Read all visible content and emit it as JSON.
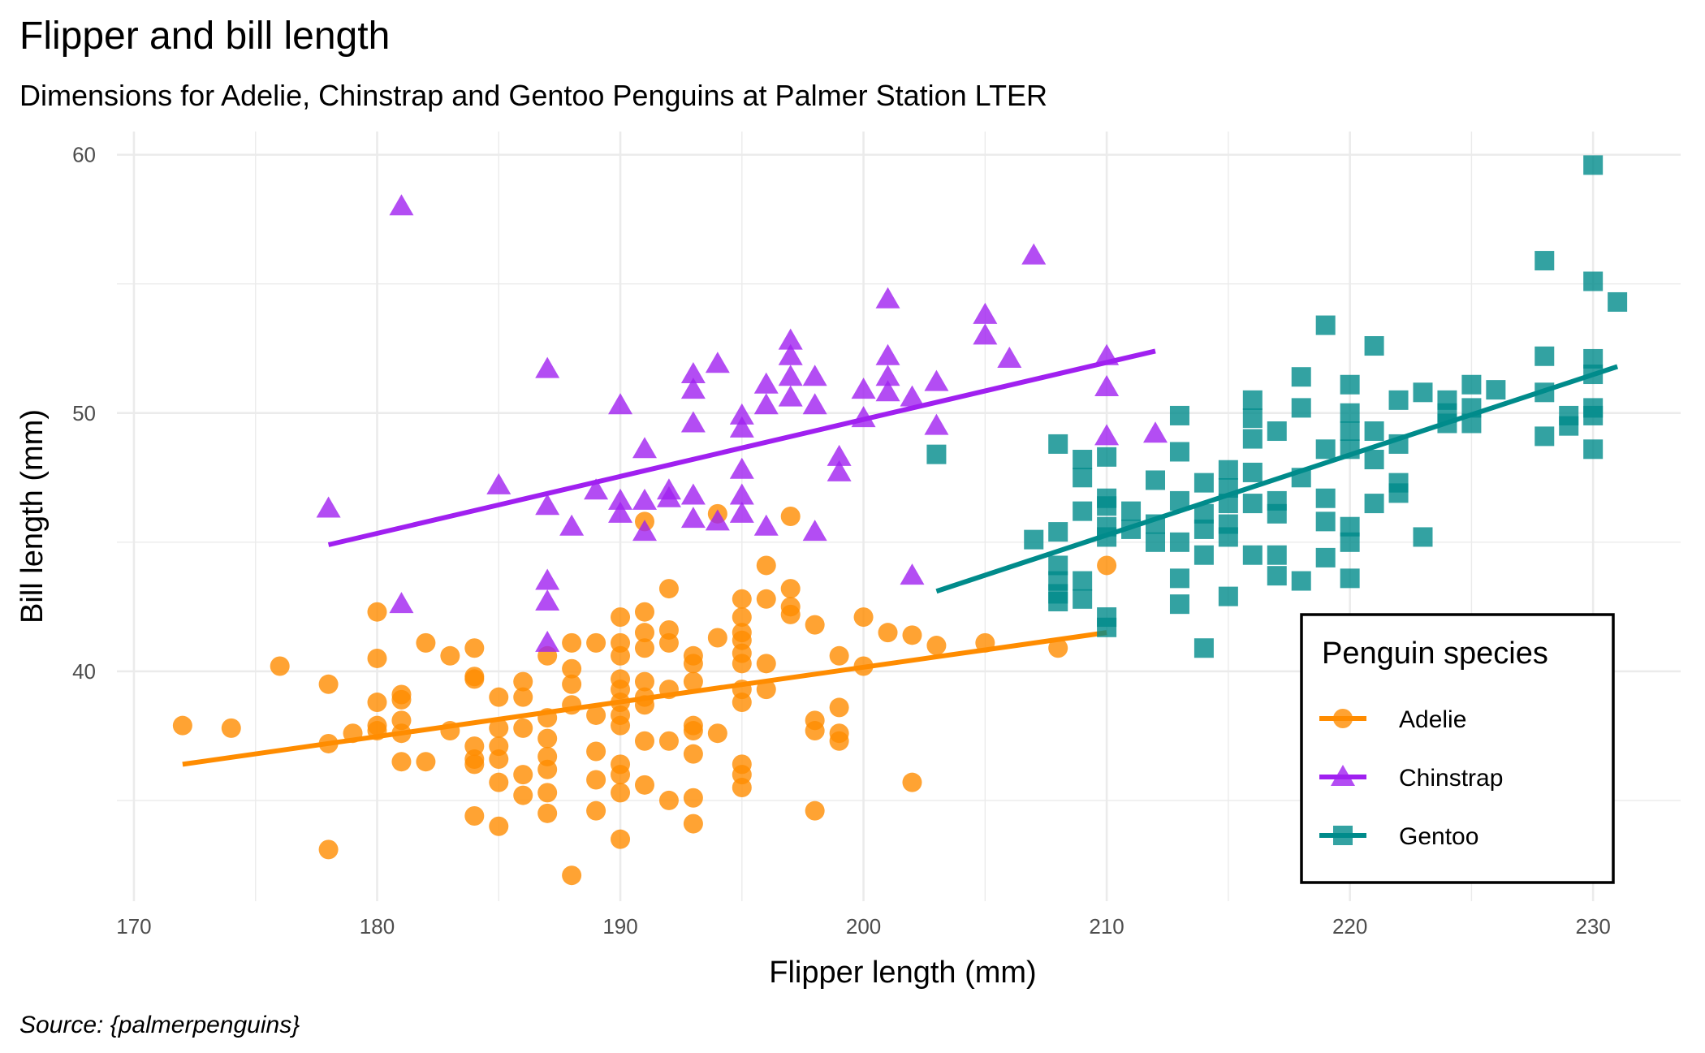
{
  "chart_data": {
    "type": "scatter",
    "title": "Flipper and bill length",
    "subtitle": "Dimensions for Adelie, Chinstrap and Gentoo Penguins at Palmer Station LTER",
    "xlabel": "Flipper length (mm)",
    "ylabel": "Bill length (mm)",
    "caption": "Source: {palmerpenguins}",
    "xlim": [
      169.3,
      233.6
    ],
    "ylim": [
      31.1,
      60.9
    ],
    "xticks": [
      170,
      180,
      190,
      200,
      210,
      220,
      230
    ],
    "yticks": [
      40,
      50,
      60
    ],
    "xtick_labels": [
      "170",
      "180",
      "190",
      "200",
      "210",
      "220",
      "230"
    ],
    "ytick_labels": [
      "40",
      "50",
      "60"
    ],
    "grid": true,
    "legend": {
      "title": "Penguin species",
      "placement": "bottom-right",
      "entries": [
        "Adelie",
        "Chinstrap",
        "Gentoo"
      ]
    },
    "series": [
      {
        "name": "Adelie",
        "color": "#FF8C00",
        "marker": "circle",
        "trend": [
          [
            172,
            36.4
          ],
          [
            210,
            41.5
          ]
        ],
        "points": [
          [
            172,
            37.9
          ],
          [
            174,
            37.8
          ],
          [
            176,
            40.2
          ],
          [
            178,
            39.5
          ],
          [
            178,
            37.2
          ],
          [
            178,
            33.1
          ],
          [
            179,
            37.6
          ],
          [
            180,
            42.3
          ],
          [
            180,
            40.5
          ],
          [
            180,
            38.8
          ],
          [
            180,
            37.9
          ],
          [
            180,
            37.7
          ],
          [
            181,
            39.1
          ],
          [
            181,
            38.9
          ],
          [
            181,
            38.1
          ],
          [
            181,
            37.6
          ],
          [
            181,
            36.5
          ],
          [
            182,
            41.1
          ],
          [
            182,
            36.5
          ],
          [
            183,
            40.6
          ],
          [
            183,
            37.7
          ],
          [
            184,
            40.9
          ],
          [
            184,
            39.8
          ],
          [
            184,
            39.7
          ],
          [
            184,
            37.1
          ],
          [
            184,
            36.6
          ],
          [
            184,
            36.4
          ],
          [
            184,
            34.4
          ],
          [
            185,
            39.0
          ],
          [
            185,
            37.8
          ],
          [
            185,
            37.1
          ],
          [
            185,
            36.6
          ],
          [
            185,
            35.7
          ],
          [
            185,
            34.0
          ],
          [
            186,
            39.6
          ],
          [
            186,
            39.0
          ],
          [
            186,
            37.8
          ],
          [
            186,
            36.0
          ],
          [
            186,
            35.2
          ],
          [
            187,
            40.6
          ],
          [
            187,
            38.2
          ],
          [
            187,
            37.4
          ],
          [
            187,
            36.7
          ],
          [
            187,
            36.2
          ],
          [
            187,
            35.3
          ],
          [
            187,
            34.5
          ],
          [
            188,
            41.1
          ],
          [
            188,
            40.1
          ],
          [
            188,
            39.5
          ],
          [
            188,
            38.7
          ],
          [
            188,
            32.1
          ],
          [
            189,
            41.1
          ],
          [
            189,
            38.3
          ],
          [
            189,
            36.9
          ],
          [
            189,
            35.8
          ],
          [
            189,
            34.6
          ],
          [
            190,
            42.1
          ],
          [
            190,
            41.1
          ],
          [
            190,
            40.6
          ],
          [
            190,
            39.7
          ],
          [
            190,
            39.3
          ],
          [
            190,
            38.8
          ],
          [
            190,
            38.3
          ],
          [
            190,
            37.9
          ],
          [
            190,
            36.4
          ],
          [
            190,
            36.0
          ],
          [
            190,
            35.3
          ],
          [
            190,
            33.5
          ],
          [
            191,
            45.8
          ],
          [
            191,
            42.3
          ],
          [
            191,
            41.5
          ],
          [
            191,
            40.9
          ],
          [
            191,
            39.6
          ],
          [
            191,
            39.0
          ],
          [
            191,
            38.7
          ],
          [
            191,
            37.3
          ],
          [
            191,
            35.6
          ],
          [
            192,
            43.2
          ],
          [
            192,
            41.6
          ],
          [
            192,
            41.1
          ],
          [
            192,
            39.3
          ],
          [
            192,
            37.3
          ],
          [
            192,
            35.0
          ],
          [
            193,
            40.6
          ],
          [
            193,
            40.3
          ],
          [
            193,
            39.6
          ],
          [
            193,
            37.9
          ],
          [
            193,
            37.7
          ],
          [
            193,
            36.8
          ],
          [
            193,
            35.1
          ],
          [
            193,
            34.1
          ],
          [
            194,
            46.1
          ],
          [
            194,
            41.3
          ],
          [
            194,
            37.6
          ],
          [
            195,
            42.8
          ],
          [
            195,
            42.1
          ],
          [
            195,
            41.5
          ],
          [
            195,
            41.2
          ],
          [
            195,
            40.7
          ],
          [
            195,
            40.3
          ],
          [
            195,
            39.3
          ],
          [
            195,
            38.8
          ],
          [
            195,
            36.4
          ],
          [
            195,
            36.0
          ],
          [
            195,
            35.5
          ],
          [
            196,
            44.1
          ],
          [
            196,
            42.8
          ],
          [
            196,
            40.3
          ],
          [
            196,
            39.3
          ],
          [
            197,
            46.0
          ],
          [
            197,
            43.2
          ],
          [
            197,
            42.5
          ],
          [
            197,
            42.2
          ],
          [
            198,
            41.8
          ],
          [
            198,
            38.1
          ],
          [
            198,
            37.7
          ],
          [
            198,
            34.6
          ],
          [
            199,
            40.6
          ],
          [
            199,
            38.6
          ],
          [
            199,
            37.6
          ],
          [
            199,
            37.3
          ],
          [
            200,
            42.1
          ],
          [
            200,
            40.2
          ],
          [
            201,
            41.5
          ],
          [
            202,
            41.4
          ],
          [
            202,
            35.7
          ],
          [
            203,
            41.0
          ],
          [
            205,
            41.1
          ],
          [
            208,
            40.9
          ],
          [
            210,
            44.1
          ]
        ]
      },
      {
        "name": "Chinstrap",
        "color": "#A020F0",
        "marker": "triangle",
        "trend": [
          [
            178,
            44.9
          ],
          [
            212,
            52.4
          ]
        ],
        "points": [
          [
            178,
            46.3
          ],
          [
            181,
            58.0
          ],
          [
            181,
            42.6
          ],
          [
            185,
            47.2
          ],
          [
            187,
            51.7
          ],
          [
            187,
            46.4
          ],
          [
            187,
            43.5
          ],
          [
            187,
            42.7
          ],
          [
            187,
            41.1
          ],
          [
            188,
            45.6
          ],
          [
            189,
            47.0
          ],
          [
            190,
            50.3
          ],
          [
            190,
            46.6
          ],
          [
            190,
            46.1
          ],
          [
            191,
            48.6
          ],
          [
            191,
            46.6
          ],
          [
            191,
            45.4
          ],
          [
            192,
            47.0
          ],
          [
            192,
            46.7
          ],
          [
            193,
            51.5
          ],
          [
            193,
            50.9
          ],
          [
            193,
            49.6
          ],
          [
            193,
            46.8
          ],
          [
            193,
            45.9
          ],
          [
            194,
            51.9
          ],
          [
            194,
            45.8
          ],
          [
            195,
            49.9
          ],
          [
            195,
            49.4
          ],
          [
            195,
            47.8
          ],
          [
            195,
            46.8
          ],
          [
            195,
            46.1
          ],
          [
            196,
            51.1
          ],
          [
            196,
            50.3
          ],
          [
            196,
            45.6
          ],
          [
            197,
            52.8
          ],
          [
            197,
            52.2
          ],
          [
            197,
            51.4
          ],
          [
            197,
            50.6
          ],
          [
            198,
            51.4
          ],
          [
            198,
            50.3
          ],
          [
            198,
            45.4
          ],
          [
            199,
            48.3
          ],
          [
            199,
            47.7
          ],
          [
            200,
            50.9
          ],
          [
            200,
            49.8
          ],
          [
            201,
            54.4
          ],
          [
            201,
            52.2
          ],
          [
            201,
            51.4
          ],
          [
            201,
            50.8
          ],
          [
            202,
            50.6
          ],
          [
            202,
            43.7
          ],
          [
            203,
            51.2
          ],
          [
            203,
            49.5
          ],
          [
            205,
            53.8
          ],
          [
            205,
            53.0
          ],
          [
            206,
            52.1
          ],
          [
            207,
            56.1
          ],
          [
            210,
            52.2
          ],
          [
            210,
            51.0
          ],
          [
            210,
            49.1
          ],
          [
            212,
            49.2
          ]
        ]
      },
      {
        "name": "Gentoo",
        "color": "#008B8B",
        "marker": "square",
        "trend": [
          [
            203,
            43.1
          ],
          [
            231,
            51.8
          ]
        ],
        "points": [
          [
            203,
            48.4
          ],
          [
            207,
            45.1
          ],
          [
            208,
            48.8
          ],
          [
            208,
            45.4
          ],
          [
            208,
            44.1
          ],
          [
            208,
            43.5
          ],
          [
            208,
            43.0
          ],
          [
            208,
            42.7
          ],
          [
            209,
            48.2
          ],
          [
            209,
            47.5
          ],
          [
            209,
            46.2
          ],
          [
            209,
            43.5
          ],
          [
            209,
            42.8
          ],
          [
            210,
            48.3
          ],
          [
            210,
            46.7
          ],
          [
            210,
            46.4
          ],
          [
            210,
            45.6
          ],
          [
            210,
            45.2
          ],
          [
            210,
            42.1
          ],
          [
            210,
            41.7
          ],
          [
            211,
            46.2
          ],
          [
            211,
            45.5
          ],
          [
            212,
            47.4
          ],
          [
            212,
            45.7
          ],
          [
            212,
            45.0
          ],
          [
            213,
            49.9
          ],
          [
            213,
            48.5
          ],
          [
            213,
            46.6
          ],
          [
            213,
            45.0
          ],
          [
            213,
            43.6
          ],
          [
            213,
            42.6
          ],
          [
            214,
            47.3
          ],
          [
            214,
            46.1
          ],
          [
            214,
            45.5
          ],
          [
            214,
            44.5
          ],
          [
            214,
            40.9
          ],
          [
            215,
            47.8
          ],
          [
            215,
            47.1
          ],
          [
            215,
            46.5
          ],
          [
            215,
            45.7
          ],
          [
            215,
            45.2
          ],
          [
            215,
            42.9
          ],
          [
            216,
            50.5
          ],
          [
            216,
            49.8
          ],
          [
            216,
            49.0
          ],
          [
            216,
            47.7
          ],
          [
            216,
            46.5
          ],
          [
            216,
            44.5
          ],
          [
            217,
            49.3
          ],
          [
            217,
            46.6
          ],
          [
            217,
            46.1
          ],
          [
            217,
            44.5
          ],
          [
            217,
            43.7
          ],
          [
            218,
            51.4
          ],
          [
            218,
            50.2
          ],
          [
            218,
            47.5
          ],
          [
            218,
            43.5
          ],
          [
            219,
            53.4
          ],
          [
            219,
            48.6
          ],
          [
            219,
            46.7
          ],
          [
            219,
            45.8
          ],
          [
            219,
            44.4
          ],
          [
            220,
            51.1
          ],
          [
            220,
            50.0
          ],
          [
            220,
            49.3
          ],
          [
            220,
            48.6
          ],
          [
            220,
            45.6
          ],
          [
            220,
            45.0
          ],
          [
            220,
            43.6
          ],
          [
            221,
            52.6
          ],
          [
            221,
            49.3
          ],
          [
            221,
            48.2
          ],
          [
            221,
            46.5
          ],
          [
            222,
            50.5
          ],
          [
            222,
            48.8
          ],
          [
            222,
            47.3
          ],
          [
            222,
            46.9
          ],
          [
            223,
            50.8
          ],
          [
            223,
            45.2
          ],
          [
            224,
            50.5
          ],
          [
            224,
            50.0
          ],
          [
            224,
            49.6
          ],
          [
            225,
            51.1
          ],
          [
            225,
            50.2
          ],
          [
            225,
            49.6
          ],
          [
            226,
            50.9
          ],
          [
            228,
            55.9
          ],
          [
            228,
            52.2
          ],
          [
            228,
            50.8
          ],
          [
            228,
            49.1
          ],
          [
            229,
            49.9
          ],
          [
            229,
            49.5
          ],
          [
            230,
            59.6
          ],
          [
            230,
            55.1
          ],
          [
            230,
            52.1
          ],
          [
            230,
            51.5
          ],
          [
            230,
            50.2
          ],
          [
            230,
            49.9
          ],
          [
            230,
            48.6
          ],
          [
            231,
            54.3
          ]
        ]
      }
    ]
  }
}
